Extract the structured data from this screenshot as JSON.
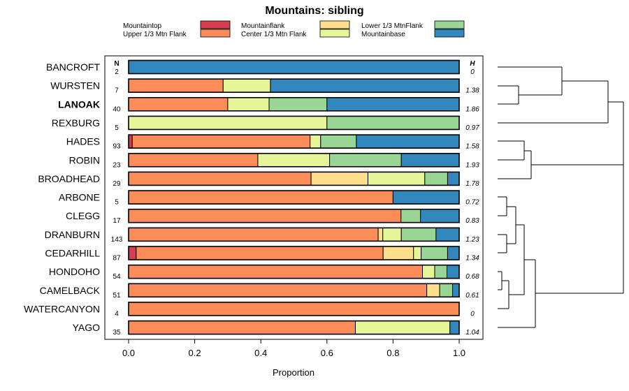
{
  "chart_data": {
    "type": "stacked-bar-horizontal",
    "title": "Mountains: sibling",
    "xlabel": "Proportion",
    "xlim": [
      0,
      1
    ],
    "xticks": [
      "0.0",
      "0.2",
      "0.4",
      "0.6",
      "0.8",
      "1.0"
    ],
    "n_header": "N",
    "h_header": "H",
    "legend": [
      {
        "name": "Mountaintop",
        "color": "#d53e4f"
      },
      {
        "name": "Upper 1/3 Mtn Flank",
        "color": "#fc8d59"
      },
      {
        "name": "Mountainflank",
        "color": "#fee08b"
      },
      {
        "name": "Center 1/3 Mtn Flank",
        "color": "#e6f598"
      },
      {
        "name": "Lower 1/3 MtnFlank",
        "color": "#99d594"
      },
      {
        "name": "Mountainbase",
        "color": "#3288bd"
      }
    ],
    "rows": [
      {
        "site": "BANCROFT",
        "n": "2",
        "h": "0",
        "bold": false,
        "values": [
          0,
          0,
          0,
          0,
          0,
          1.0
        ]
      },
      {
        "site": "WURSTEN",
        "n": "7",
        "h": "1.38",
        "bold": false,
        "values": [
          0,
          0.286,
          0,
          0.143,
          0,
          0.571
        ]
      },
      {
        "site": "LANOAK",
        "n": "40",
        "h": "1.86",
        "bold": true,
        "values": [
          0,
          0.3,
          0,
          0.125,
          0.175,
          0.4
        ]
      },
      {
        "site": "REXBURG",
        "n": "5",
        "h": "0.97",
        "bold": false,
        "values": [
          0,
          0,
          0,
          0.6,
          0.4,
          0
        ]
      },
      {
        "site": "HADES",
        "n": "93",
        "h": "1.58",
        "bold": false,
        "values": [
          0.011,
          0.538,
          0,
          0.032,
          0.108,
          0.311
        ]
      },
      {
        "site": "ROBIN",
        "n": "23",
        "h": "1.93",
        "bold": false,
        "values": [
          0,
          0.391,
          0,
          0.217,
          0.217,
          0.175
        ]
      },
      {
        "site": "BROADHEAD",
        "n": "29",
        "h": "1.78",
        "bold": false,
        "values": [
          0,
          0.552,
          0.172,
          0.172,
          0.069,
          0.035
        ]
      },
      {
        "site": "ARBONE",
        "n": "5",
        "h": "0.72",
        "bold": false,
        "values": [
          0,
          0.8,
          0,
          0,
          0,
          0.2
        ]
      },
      {
        "site": "CLEGG",
        "n": "17",
        "h": "0.83",
        "bold": false,
        "values": [
          0,
          0.824,
          0,
          0,
          0.059,
          0.117
        ]
      },
      {
        "site": "DRANBURN",
        "n": "143",
        "h": "1.23",
        "bold": false,
        "values": [
          0,
          0.755,
          0.014,
          0.056,
          0.105,
          0.07
        ]
      },
      {
        "site": "CEDARHILL",
        "n": "87",
        "h": "1.34",
        "bold": false,
        "values": [
          0.023,
          0.747,
          0.092,
          0.023,
          0.08,
          0.035
        ]
      },
      {
        "site": "HONDOHO",
        "n": "54",
        "h": "0.68",
        "bold": false,
        "values": [
          0,
          0.889,
          0,
          0.037,
          0.037,
          0.037
        ]
      },
      {
        "site": "CAMELBACK",
        "n": "51",
        "h": "0.61",
        "bold": false,
        "values": [
          0,
          0.902,
          0.039,
          0,
          0.039,
          0.02
        ]
      },
      {
        "site": "WATERCANYON",
        "n": "4",
        "h": "0",
        "bold": false,
        "values": [
          0,
          1.0,
          0,
          0,
          0,
          0
        ]
      },
      {
        "site": "YAGO",
        "n": "35",
        "h": "1.04",
        "bold": false,
        "values": [
          0,
          0.686,
          0,
          0.286,
          0,
          0.028
        ]
      }
    ]
  }
}
